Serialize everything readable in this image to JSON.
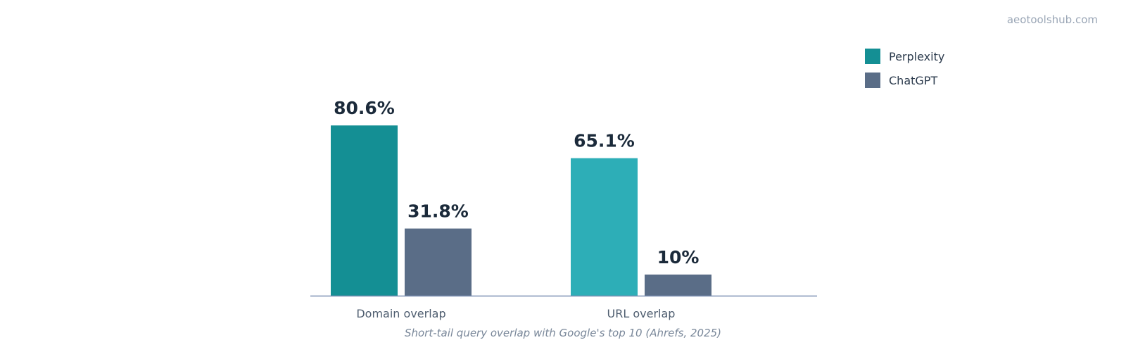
{
  "watermark": "aeotoolshub.com",
  "caption": "Short-tail query overlap with Google's top 10 (Ahrefs, 2025)",
  "legend": [
    {
      "label": "Perplexity",
      "color": "#148f94"
    },
    {
      "label": "ChatGPT",
      "color": "#5a6d87"
    }
  ],
  "chart_data": {
    "type": "bar",
    "title": "",
    "xlabel": "",
    "ylabel": "",
    "ylim": [
      0,
      100
    ],
    "grid": false,
    "legend_position": "top-right",
    "categories": [
      "Domain overlap",
      "URL overlap"
    ],
    "series": [
      {
        "name": "Perplexity",
        "values": [
          80.6,
          65.1
        ],
        "labels": [
          "80.6%",
          "65.1%"
        ],
        "colors": [
          "#148f94",
          "#2daeb7"
        ]
      },
      {
        "name": "ChatGPT",
        "values": [
          31.8,
          10
        ],
        "labels": [
          "31.8%",
          "10%"
        ],
        "colors": [
          "#5a6d87",
          "#5a6d87"
        ]
      }
    ]
  }
}
